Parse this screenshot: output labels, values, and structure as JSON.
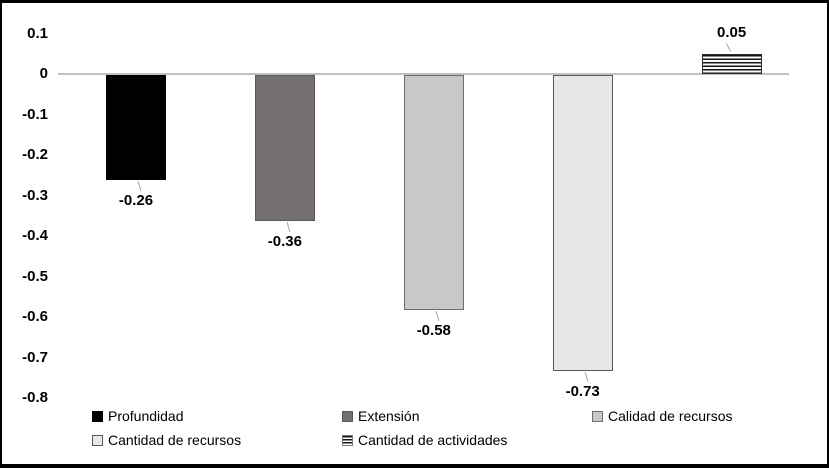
{
  "chart_data": {
    "type": "bar",
    "title": "",
    "xlabel": "",
    "ylabel": "",
    "ylim": [
      -0.8,
      0.1
    ],
    "ytick_step": 0.1,
    "yticks": [
      "0.1",
      "0",
      "-0.1",
      "-0.2",
      "-0.3",
      "-0.4",
      "-0.5",
      "-0.6",
      "-0.7",
      "-0.8"
    ],
    "grid": "zero-baseline-only",
    "zero_line_color": "#c0c0c0",
    "legend_position": "bottom",
    "series": [
      {
        "name": "Profundidad",
        "value": -0.26,
        "label": "-0.26",
        "fill": "#000000",
        "border": "#000000",
        "pattern": "solid"
      },
      {
        "name": "Extensión",
        "value": -0.36,
        "label": "-0.36",
        "fill": "#747070",
        "border": "#5c5858",
        "pattern": "solid"
      },
      {
        "name": "Calidad de recursos",
        "value": -0.58,
        "label": "-0.58",
        "fill": "#c9c8c8",
        "border": "#6e6e6e",
        "pattern": "solid"
      },
      {
        "name": "Cantidad de recursos",
        "value": -0.73,
        "label": "-0.73",
        "fill": "#e8e7e7",
        "border": "#595959",
        "pattern": "solid"
      },
      {
        "name": "Cantidad de actividades",
        "value": 0.05,
        "label": "0.05",
        "fill": "#fafafa",
        "border": "#2b2b2b",
        "pattern": "horizontal-stripes",
        "stripe_color": "#141414"
      }
    ]
  }
}
